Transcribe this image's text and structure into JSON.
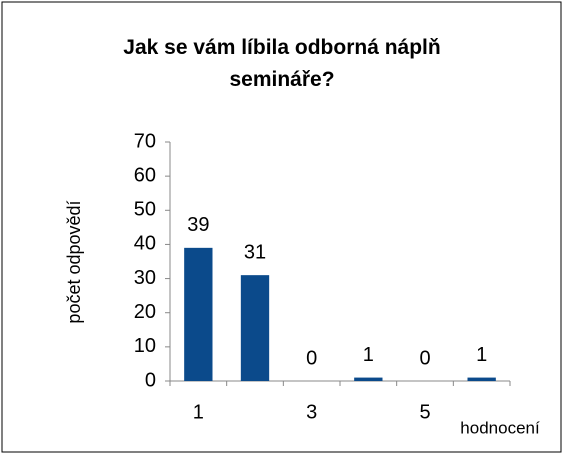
{
  "chart_data": {
    "type": "bar",
    "title": "Jak se vám líbila odborná náplň semináře?",
    "x_label": "hodnocení",
    "y_label": "počet odpovědí",
    "categories": [
      "1",
      null,
      "3",
      null,
      "5",
      null
    ],
    "values": [
      39,
      31,
      0,
      1,
      0,
      1
    ],
    "color": "#0b4a8b",
    "ylim": [
      0,
      70
    ],
    "yticks": [
      0,
      10,
      20,
      30,
      40,
      50,
      60,
      70
    ],
    "grid": false,
    "data_labels": true
  }
}
